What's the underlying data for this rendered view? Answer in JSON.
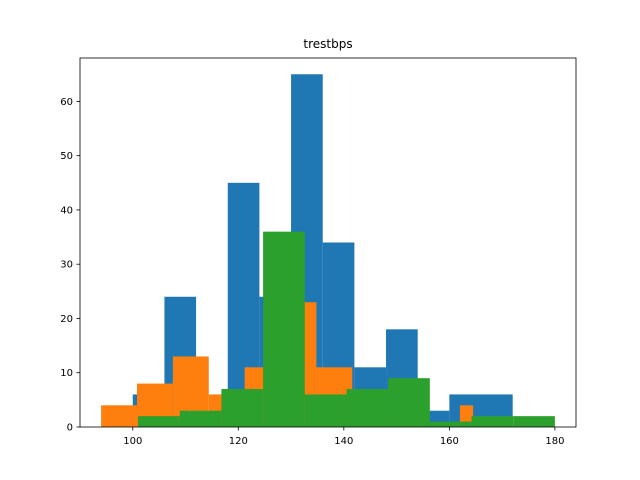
{
  "chart_data": {
    "type": "bar",
    "title": "trestbps",
    "xlabel": "",
    "ylabel": "",
    "xlim": [
      90,
      184
    ],
    "ylim": [
      0,
      68
    ],
    "x_ticks": [
      100,
      120,
      140,
      160,
      180
    ],
    "y_ticks": [
      0,
      10,
      20,
      30,
      40,
      50,
      60
    ],
    "grid": false,
    "legend": "none",
    "series": [
      {
        "color": "#1f77b4",
        "bin_edges": [
          100,
          106,
          112,
          118,
          124,
          130,
          136,
          142,
          148,
          154,
          160,
          166,
          172
        ],
        "counts": [
          6,
          24,
          0,
          45,
          24,
          65,
          34,
          11,
          18,
          3,
          6,
          6
        ]
      },
      {
        "color": "#ff7f0e",
        "bin_edges": [
          94,
          100.8,
          107.6,
          114.4,
          121.2,
          128,
          134.8,
          141.6,
          148.4,
          155.2,
          162,
          164.5
        ],
        "counts": [
          4,
          8,
          13,
          6,
          11,
          23,
          11,
          2,
          0,
          0,
          4
        ]
      },
      {
        "color": "#2ca02c",
        "bin_edges": [
          101,
          108.9,
          116.8,
          124.7,
          132.6,
          140.5,
          148.4,
          156.3,
          164.2,
          172.1,
          180
        ],
        "counts": [
          2,
          3,
          7,
          36,
          6,
          7,
          9,
          1,
          2,
          2
        ]
      }
    ]
  }
}
